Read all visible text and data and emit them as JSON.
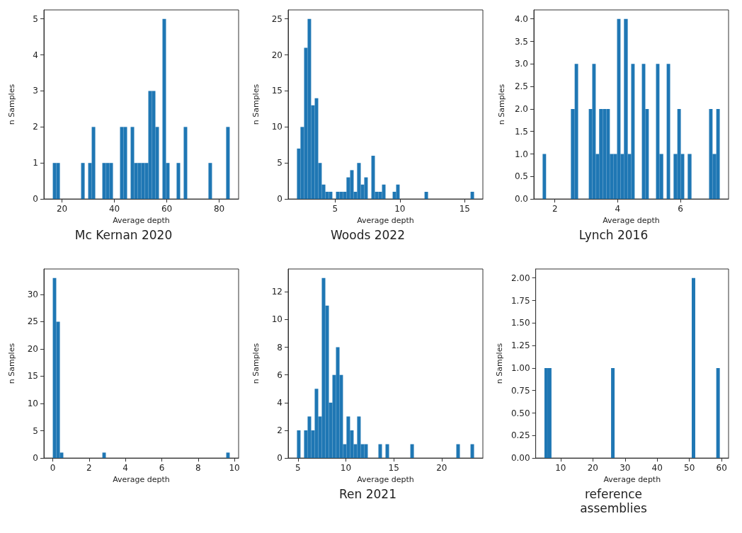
{
  "chart_data": [
    {
      "type": "histogram",
      "title": "Mc Kernan 2020",
      "xlabel": "Average depth",
      "ylabel": "n Samples",
      "color": "#1f77b4",
      "bins": [
        16.5,
        17.85,
        19.2,
        27.3,
        28.65,
        30.0,
        31.35,
        32.7,
        35.4,
        36.75,
        38.1,
        39.45,
        42.15,
        43.5,
        44.85,
        46.2,
        47.55,
        48.9,
        50.25,
        51.6,
        52.95,
        54.3,
        55.65,
        57.0,
        58.35,
        59.7,
        61.05,
        63.75,
        65.1,
        66.45,
        67.8,
        75.9,
        77.25,
        82.65,
        84.0
      ],
      "values": [
        1,
        1,
        0,
        1,
        0,
        1,
        2,
        0,
        1,
        1,
        1,
        0,
        2,
        2,
        0,
        2,
        1,
        1,
        1,
        1,
        3,
        3,
        2,
        0,
        5,
        1,
        0,
        1,
        0,
        2,
        0,
        1,
        0,
        2
      ],
      "xlim": [
        13.1,
        87.4
      ],
      "ylim": [
        0,
        5.25
      ],
      "xticks": [
        20,
        40,
        60,
        80
      ],
      "yticks": [
        0,
        1,
        2,
        3,
        4,
        5
      ]
    },
    {
      "type": "histogram",
      "title": "Woods 2022",
      "xlabel": "Average depth",
      "ylabel": "n Samples",
      "color": "#1f77b4",
      "bins": [
        2.06,
        2.33,
        2.61,
        2.88,
        3.15,
        3.43,
        3.7,
        3.97,
        4.25,
        4.52,
        4.79,
        5.07,
        5.34,
        5.61,
        5.88,
        6.16,
        6.43,
        6.7,
        6.98,
        7.25,
        7.52,
        7.8,
        8.07,
        8.34,
        8.62,
        8.89,
        9.44,
        9.71,
        9.98,
        11.9,
        12.17,
        15.45,
        15.72
      ],
      "values": [
        7,
        10,
        21,
        25,
        13,
        14,
        5,
        2,
        1,
        1,
        0,
        1,
        1,
        1,
        3,
        4,
        1,
        5,
        2,
        3,
        0,
        6,
        1,
        1,
        2,
        0,
        1,
        2,
        0,
        1,
        0,
        1
      ],
      "xlim": [
        1.38,
        16.4
      ],
      "ylim": [
        0,
        26.25
      ],
      "xticks": [
        5,
        10,
        15
      ],
      "yticks": [
        0,
        5,
        10,
        15,
        20,
        25
      ]
    },
    {
      "type": "histogram",
      "title": "Lynch 2016",
      "xlabel": "Average depth",
      "ylabel": "n Samples",
      "color": "#1f77b4",
      "bins": [
        1.61,
        1.72,
        2.51,
        2.63,
        2.74,
        3.08,
        3.19,
        3.3,
        3.41,
        3.53,
        3.64,
        3.75,
        3.87,
        3.98,
        4.09,
        4.2,
        4.32,
        4.43,
        4.54,
        4.77,
        4.88,
        4.99,
        5.22,
        5.33,
        5.45,
        5.56,
        5.67,
        5.78,
        5.9,
        6.01,
        6.12,
        6.23,
        6.35,
        6.91,
        7.02,
        7.14,
        7.25
      ],
      "values": [
        1,
        0,
        2,
        3,
        0,
        2,
        3,
        1,
        2,
        2,
        2,
        1,
        1,
        4,
        1,
        4,
        1,
        3,
        0,
        3,
        2,
        0,
        3,
        1,
        0,
        3,
        0,
        1,
        2,
        1,
        0,
        1,
        0,
        2,
        1,
        2
      ],
      "xlim": [
        1.33,
        7.53
      ],
      "ylim": [
        0,
        4.2
      ],
      "xticks": [
        2,
        4,
        6
      ],
      "yticks": [
        {
          "value": 0,
          "label": "0.0"
        },
        {
          "value": 0.5,
          "label": "0.5"
        },
        {
          "value": 1,
          "label": "1.0"
        },
        {
          "value": 1.5,
          "label": "1.5"
        },
        {
          "value": 2,
          "label": "2.0"
        },
        {
          "value": 2.5,
          "label": "2.5"
        },
        {
          "value": 3,
          "label": "3.0"
        },
        {
          "value": 3.5,
          "label": "3.5"
        },
        {
          "value": 4,
          "label": "4.0"
        }
      ]
    },
    {
      "type": "histogram",
      "xlabel": "Average depth",
      "ylabel": "n Samples",
      "color": "#1f77b4",
      "bins": [
        0,
        0.19,
        0.39,
        0.58,
        2.73,
        2.92,
        9.55,
        9.74
      ],
      "values": [
        33,
        25,
        1,
        0,
        1,
        0,
        1
      ],
      "xlim": [
        -0.49,
        10.23
      ],
      "ylim": [
        0,
        34.65
      ],
      "xticks": [
        0,
        2,
        4,
        6,
        8,
        10
      ],
      "yticks": [
        0,
        5,
        10,
        15,
        20,
        25,
        30
      ]
    },
    {
      "type": "histogram",
      "title": "Ren 2021",
      "xlabel": "Average depth",
      "ylabel": "n Samples",
      "color": "#1f77b4",
      "bins": [
        4.9,
        5.27,
        5.64,
        6.01,
        6.38,
        6.75,
        7.12,
        7.49,
        7.86,
        8.23,
        8.6,
        8.97,
        9.34,
        9.7,
        10.07,
        10.44,
        10.81,
        11.18,
        11.55,
        11.92,
        12.29,
        13.4,
        13.77,
        14.14,
        14.51,
        16.73,
        17.1,
        21.53,
        21.9,
        23.01,
        23.38
      ],
      "values": [
        2,
        0,
        2,
        3,
        2,
        5,
        3,
        13,
        11,
        4,
        6,
        8,
        6,
        1,
        3,
        2,
        1,
        3,
        1,
        1,
        0,
        1,
        0,
        1,
        0,
        1,
        0,
        1,
        0,
        1
      ],
      "xlim": [
        3.98,
        24.3
      ],
      "ylim": [
        0,
        13.65
      ],
      "xticks": [
        5,
        10,
        15,
        20
      ],
      "yticks": [
        0,
        2,
        4,
        6,
        8,
        10,
        12
      ]
    },
    {
      "type": "histogram",
      "title": "reference assemblies",
      "xlabel": "Average depth",
      "ylabel": "n Samples",
      "color": "#1f77b4",
      "bins": [
        4.98,
        6.07,
        7.16,
        25.67,
        26.76,
        50.72,
        51.81,
        58.34,
        59.43
      ],
      "values": [
        1,
        1,
        0,
        1,
        0,
        2,
        0,
        1
      ],
      "xlim": [
        2.26,
        62.15
      ],
      "ylim": [
        0,
        2.1
      ],
      "xticks": [
        10,
        20,
        30,
        40,
        50,
        60
      ],
      "yticks": [
        {
          "value": 0,
          "label": "0.00"
        },
        {
          "value": 0.25,
          "label": "0.25"
        },
        {
          "value": 0.5,
          "label": "0.50"
        },
        {
          "value": 0.75,
          "label": "0.75"
        },
        {
          "value": 1,
          "label": "1.00"
        },
        {
          "value": 1.25,
          "label": "1.25"
        },
        {
          "value": 1.5,
          "label": "1.50"
        },
        {
          "value": 1.75,
          "label": "1.75"
        },
        {
          "value": 2,
          "label": "2.00"
        }
      ]
    }
  ]
}
